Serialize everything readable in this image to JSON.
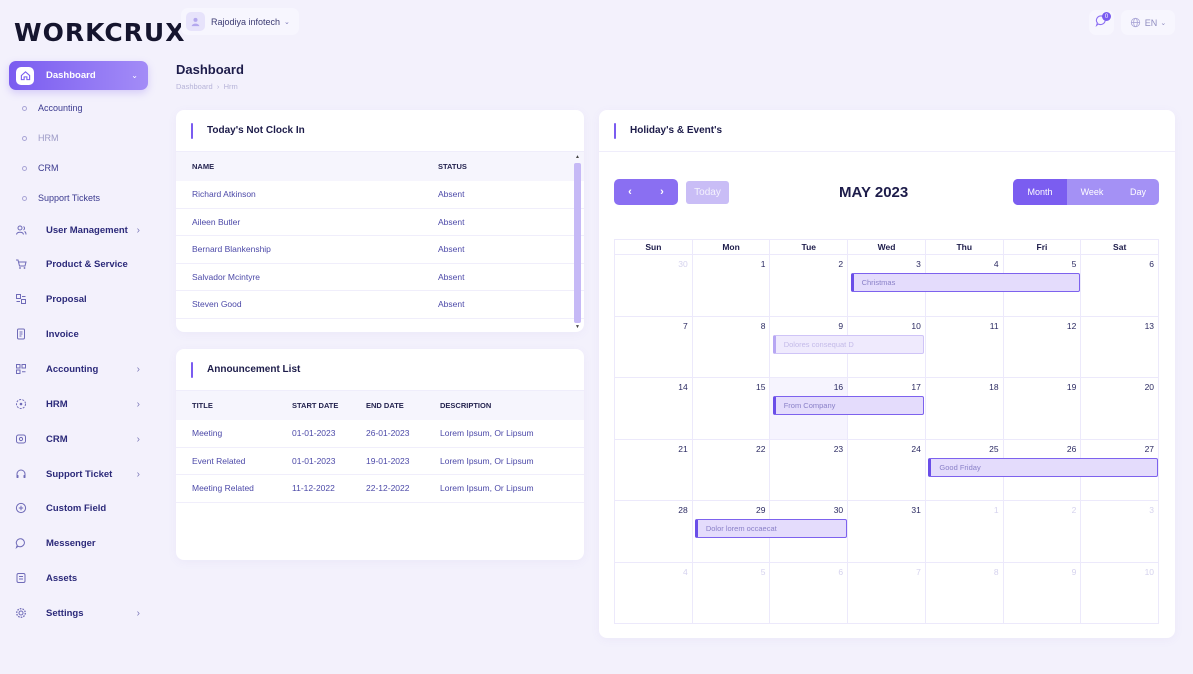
{
  "brand": {
    "logo_text": "WORKCRUX"
  },
  "topbar": {
    "company": "Rajodiya infotech",
    "notification_count": "0",
    "language": "EN"
  },
  "sidebar": {
    "active": {
      "label": "Dashboard"
    },
    "subitems": [
      {
        "label": "Accounting"
      },
      {
        "label": "HRM"
      },
      {
        "label": "CRM"
      },
      {
        "label": "Support Tickets"
      }
    ],
    "items": [
      {
        "label": "User Management",
        "icon": "users-icon",
        "has_children": true
      },
      {
        "label": "Product & Service",
        "icon": "cart-icon",
        "has_children": false
      },
      {
        "label": "Proposal",
        "icon": "proposal-icon",
        "has_children": false
      },
      {
        "label": "Invoice",
        "icon": "invoice-icon",
        "has_children": false
      },
      {
        "label": "Accounting",
        "icon": "accounting-icon",
        "has_children": true
      },
      {
        "label": "HRM",
        "icon": "hrm-icon",
        "has_children": true
      },
      {
        "label": "CRM",
        "icon": "crm-icon",
        "has_children": true
      },
      {
        "label": "Support Ticket",
        "icon": "headset-icon",
        "has_children": true
      },
      {
        "label": "Custom Field",
        "icon": "plus-circle-icon",
        "has_children": false
      },
      {
        "label": "Messenger",
        "icon": "chat-icon",
        "has_children": false
      },
      {
        "label": "Assets",
        "icon": "assets-icon",
        "has_children": false
      },
      {
        "label": "Settings",
        "icon": "settings-icon",
        "has_children": true
      }
    ]
  },
  "page": {
    "title": "Dashboard",
    "breadcrumb": [
      "Dashboard",
      "Hrm"
    ]
  },
  "clock_in": {
    "title": "Today's Not Clock In",
    "columns": [
      "NAME",
      "STATUS"
    ],
    "rows": [
      {
        "name": "Richard Atkinson",
        "status": "Absent"
      },
      {
        "name": "Aileen Butler",
        "status": "Absent"
      },
      {
        "name": "Bernard Blankenship",
        "status": "Absent"
      },
      {
        "name": "Salvador Mcintyre",
        "status": "Absent"
      },
      {
        "name": "Steven Good",
        "status": "Absent"
      }
    ]
  },
  "announcements": {
    "title": "Announcement List",
    "columns": [
      "TITLE",
      "START DATE",
      "END DATE",
      "DESCRIPTION"
    ],
    "rows": [
      {
        "title": "Meeting",
        "start": "01-01-2023",
        "end": "26-01-2023",
        "description": "Lorem Ipsum, Or Lipsum"
      },
      {
        "title": "Event Related",
        "start": "01-01-2023",
        "end": "19-01-2023",
        "description": "Lorem Ipsum, Or Lipsum"
      },
      {
        "title": "Meeting Related",
        "start": "11-12-2022",
        "end": "22-12-2022",
        "description": "Lorem Ipsum, Or Lipsum"
      }
    ]
  },
  "calendar": {
    "title": "Holiday's & Event's",
    "today_label": "Today",
    "month_title": "MAY 2023",
    "views": [
      "Month",
      "Week",
      "Day"
    ],
    "active_view": "Month",
    "weekdays": [
      "Sun",
      "Mon",
      "Tue",
      "Wed",
      "Thu",
      "Fri",
      "Sat"
    ],
    "weeks": [
      [
        "30",
        "1",
        "2",
        "3",
        "4",
        "5",
        "6"
      ],
      [
        "7",
        "8",
        "9",
        "10",
        "11",
        "12",
        "13"
      ],
      [
        "14",
        "15",
        "16",
        "17",
        "18",
        "19",
        "20"
      ],
      [
        "21",
        "22",
        "23",
        "24",
        "25",
        "26",
        "27"
      ],
      [
        "28",
        "29",
        "30",
        "31",
        "1",
        "2",
        "3"
      ],
      [
        "4",
        "5",
        "6",
        "7",
        "8",
        "9",
        "10"
      ]
    ],
    "today": {
      "week": 2,
      "day": 2
    },
    "events": [
      {
        "label": "Christmas",
        "week": 0,
        "start_day": 3,
        "span": 3,
        "faded": false
      },
      {
        "label": "Dolores consequat D",
        "week": 1,
        "start_day": 2,
        "span": 2,
        "faded": true
      },
      {
        "label": "From Company",
        "week": 2,
        "start_day": 2,
        "span": 2,
        "faded": false
      },
      {
        "label": "Good Friday",
        "week": 3,
        "start_day": 4,
        "span": 3,
        "faded": false
      },
      {
        "label": "Dolor lorem occaecat",
        "week": 4,
        "start_day": 1,
        "span": 2,
        "faded": false
      }
    ]
  }
}
